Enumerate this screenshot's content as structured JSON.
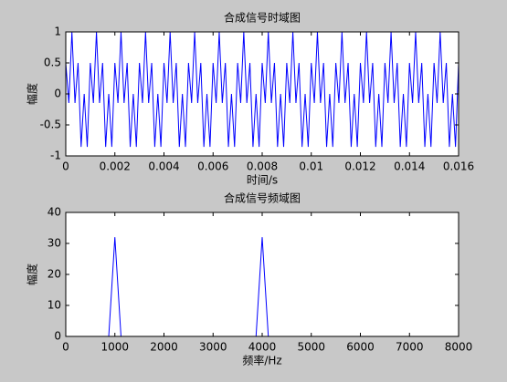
{
  "chart_data": [
    {
      "type": "line",
      "title": "合成信号时域图",
      "xlabel": "时间/s",
      "ylabel": "幅度",
      "color": "#0000ff",
      "x": [
        0,
        0.000125,
        0.00025,
        0.000375,
        0.0005,
        0.000625,
        0.00075,
        0.000875,
        0.001,
        0.001125,
        0.00125,
        0.001375,
        0.0015,
        0.001625,
        0.00175,
        0.001875,
        0.002,
        0.002125,
        0.00225,
        0.002375,
        0.0025,
        0.002625,
        0.00275,
        0.002875,
        0.003,
        0.003125,
        0.00325,
        0.003375,
        0.0035,
        0.003625,
        0.00375,
        0.003875,
        0.004,
        0.004125,
        0.00425,
        0.004375,
        0.0045,
        0.004625,
        0.00475,
        0.004875,
        0.005,
        0.005125,
        0.00525,
        0.005375,
        0.0055,
        0.005625,
        0.00575,
        0.005875,
        0.006,
        0.006125,
        0.00625,
        0.006375,
        0.0065,
        0.006625,
        0.00675,
        0.006875,
        0.007,
        0.007125,
        0.00725,
        0.007375,
        0.0075,
        0.007625,
        0.00775,
        0.007875,
        0.008,
        0.008125,
        0.00825,
        0.008375,
        0.0085,
        0.008625,
        0.00875,
        0.008875,
        0.009,
        0.009125,
        0.00925,
        0.009375,
        0.0095,
        0.009625,
        0.00975,
        0.009875,
        0.01,
        0.010125,
        0.01025,
        0.010375,
        0.0105,
        0.010625,
        0.01075,
        0.010875,
        0.011,
        0.011125,
        0.01125,
        0.011375,
        0.0115,
        0.011625,
        0.01175,
        0.011875,
        0.012,
        0.012125,
        0.01225,
        0.012375,
        0.0125,
        0.012625,
        0.01275,
        0.012875,
        0.013,
        0.013125,
        0.01325,
        0.013375,
        0.0135,
        0.013625,
        0.01375,
        0.013875,
        0.014,
        0.014125,
        0.01425,
        0.014375,
        0.0145,
        0.014625,
        0.01475,
        0.014875,
        0.015,
        0.015125,
        0.01525,
        0.015375,
        0.0155,
        0.015625,
        0.01575,
        0.015875,
        0.016
      ],
      "values": [
        0.5,
        -0.146,
        1,
        -0.146,
        0.5,
        -0.854,
        0,
        -0.854,
        0.5,
        -0.146,
        1,
        -0.146,
        0.5,
        -0.854,
        0,
        -0.854,
        0.5,
        -0.146,
        1,
        -0.146,
        0.5,
        -0.854,
        0,
        -0.854,
        0.5,
        -0.146,
        1,
        -0.146,
        0.5,
        -0.854,
        0,
        -0.854,
        0.5,
        -0.146,
        1,
        -0.146,
        0.5,
        -0.854,
        0,
        -0.854,
        0.5,
        -0.146,
        1,
        -0.146,
        0.5,
        -0.854,
        0,
        -0.854,
        0.5,
        -0.146,
        1,
        -0.146,
        0.5,
        -0.854,
        0,
        -0.854,
        0.5,
        -0.146,
        1,
        -0.146,
        0.5,
        -0.854,
        0,
        -0.854,
        0.5,
        -0.146,
        1,
        -0.146,
        0.5,
        -0.854,
        0,
        -0.854,
        0.5,
        -0.146,
        1,
        -0.146,
        0.5,
        -0.854,
        0,
        -0.854,
        0.5,
        -0.146,
        1,
        -0.146,
        0.5,
        -0.854,
        0,
        -0.854,
        0.5,
        -0.146,
        1,
        -0.146,
        0.5,
        -0.854,
        0,
        -0.854,
        0.5,
        -0.146,
        1,
        -0.146,
        0.5,
        -0.854,
        0,
        -0.854,
        0.5,
        -0.146,
        1,
        -0.146,
        0.5,
        -0.854,
        0,
        -0.854,
        0.5,
        -0.146,
        1,
        -0.146,
        0.5,
        -0.854,
        0,
        -0.854,
        0.5,
        -0.146,
        1,
        -0.146,
        0.5,
        -0.854,
        0,
        -0.854,
        0.5
      ],
      "xlim": [
        0,
        0.016
      ],
      "xticks": [
        0,
        0.002,
        0.004,
        0.006,
        0.008,
        0.01,
        0.012,
        0.014,
        0.016
      ],
      "ylim": [
        -1,
        1
      ],
      "yticks": [
        -1,
        -0.5,
        0,
        0.5,
        1
      ]
    },
    {
      "type": "line",
      "title": "合成信号频域图",
      "xlabel": "频率/Hz",
      "ylabel": "幅度",
      "color": "#0000ff",
      "x": [
        0,
        875,
        1000,
        1125,
        3875,
        4000,
        4125,
        8000
      ],
      "values": [
        0,
        0,
        32,
        0,
        0,
        32,
        0,
        0
      ],
      "xlim": [
        0,
        8000
      ],
      "xticks": [
        0,
        1000,
        2000,
        3000,
        4000,
        5000,
        6000,
        7000,
        8000
      ],
      "ylim": [
        0,
        40
      ],
      "yticks": [
        0,
        10,
        20,
        30,
        40
      ]
    }
  ]
}
